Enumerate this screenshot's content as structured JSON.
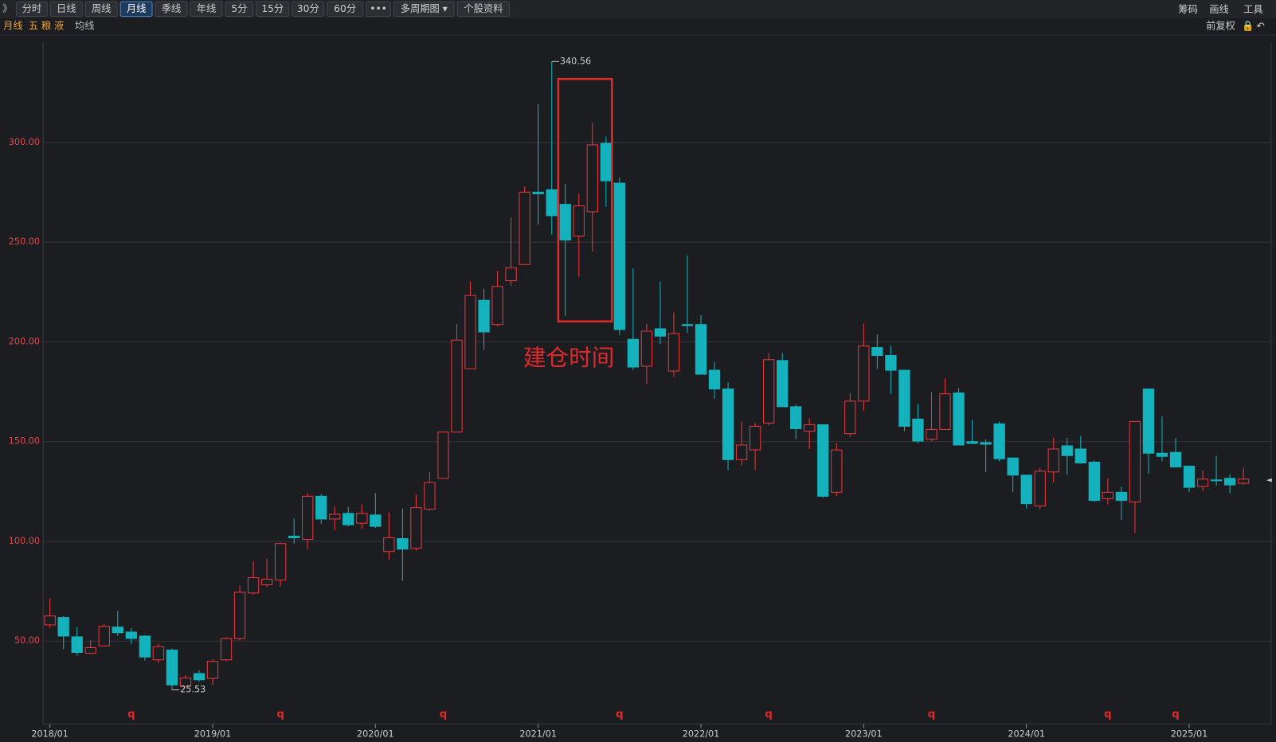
{
  "toolbar": {
    "tabs": [
      "分时",
      "日线",
      "周线",
      "月线",
      "季线",
      "年线",
      "5分",
      "15分",
      "30分",
      "60分",
      "•••",
      "多周期图 ▾",
      "个股资料"
    ],
    "active": 3,
    "right": [
      "筹码",
      "画线",
      "工具"
    ]
  },
  "subbar": {
    "period": "月线",
    "stock": "五 粮 液",
    "indicator": "均线",
    "adjust": "前复权"
  },
  "annotation": "建仓时间",
  "chart_data": {
    "type": "candlestick",
    "categories": [
      "2018/01",
      null,
      null,
      null,
      null,
      null,
      null,
      null,
      null,
      null,
      null,
      null,
      "2019/01",
      null,
      null,
      null,
      null,
      null,
      null,
      null,
      null,
      null,
      null,
      null,
      "2020/01",
      null,
      null,
      null,
      null,
      null,
      null,
      null,
      null,
      null,
      null,
      null,
      "2021/01",
      null,
      null,
      null,
      null,
      null,
      null,
      null,
      null,
      null,
      null,
      null,
      "2022/01",
      null,
      null,
      null,
      null,
      null,
      null,
      null,
      null,
      null,
      null,
      null,
      "2023/01",
      null,
      null,
      null,
      null,
      null,
      null,
      null,
      null,
      null,
      null,
      null,
      "2024/01",
      null,
      null,
      null,
      null,
      null,
      null,
      null,
      null,
      null,
      null,
      null,
      "2025/01",
      null,
      null,
      null,
      null
    ],
    "open": [
      58.1,
      61.8,
      52.1,
      43.9,
      47.6,
      57.0,
      54.5,
      52.5,
      40.6,
      45.5,
      27.3,
      33.7,
      31.3,
      40.6,
      51.3,
      74.1,
      78.2,
      80.6,
      102.6,
      101.0,
      122.6,
      111.2,
      114.0,
      109.1,
      113.2,
      94.9,
      101.4,
      96.5,
      116.1,
      131.6,
      154.8,
      186.6,
      220.9,
      208.7,
      230.7,
      238.8,
      275.1,
      276.3,
      269.0,
      253.1,
      265.3,
      299.6,
      279.6,
      201.3,
      187.8,
      206.6,
      185.4,
      208.7,
      208.7,
      185.8,
      176.4,
      141.0,
      145.9,
      159.3,
      190.7,
      167.5,
      155.2,
      158.5,
      124.6,
      154.0,
      170.3,
      197.2,
      193.2,
      185.8,
      161.3,
      151.2,
      156.1,
      174.4,
      150.0,
      149.5,
      158.9,
      141.8,
      133.2,
      117.7,
      134.8,
      147.9,
      146.3,
      139.7,
      121.4,
      124.6,
      119.7,
      176.4,
      144.2,
      144.6,
      137.7,
      127.5,
      130.8,
      131.6,
      129.1
    ],
    "high": [
      71.5,
      62.6,
      57.0,
      50.4,
      58.6,
      65.1,
      56.5,
      52.9,
      48.8,
      46.3,
      32.9,
      35.3,
      41.0,
      52.1,
      77.8,
      90.0,
      91.2,
      99.4,
      111.6,
      124.2,
      123.8,
      117.3,
      117.3,
      118.5,
      124.2,
      114.5,
      116.5,
      123.4,
      134.8,
      154.8,
      209.1,
      230.3,
      226.6,
      235.6,
      262.5,
      278.0,
      319.2,
      340.56,
      279.2,
      274.3,
      309.8,
      302.9,
      282.5,
      236.8,
      209.1,
      230.3,
      214.8,
      243.3,
      213.5,
      189.9,
      179.7,
      160.1,
      159.3,
      194.4,
      194.4,
      168.7,
      161.8,
      158.5,
      149.1,
      174.4,
      209.1,
      203.8,
      198.0,
      185.8,
      168.7,
      174.8,
      181.7,
      176.8,
      160.9,
      151.2,
      160.1,
      141.8,
      133.2,
      136.9,
      151.9,
      151.9,
      152.8,
      140.5,
      131.6,
      127.5,
      160.1,
      176.4,
      162.6,
      151.9,
      137.7,
      135.7,
      143.0,
      133.6,
      136.9
    ],
    "low": [
      56.5,
      45.9,
      42.7,
      43.5,
      47.2,
      52.5,
      48.4,
      40.2,
      39.0,
      25.53,
      27.0,
      29.6,
      28.0,
      39.8,
      50.4,
      73.3,
      77.0,
      77.4,
      98.9,
      96.1,
      108.7,
      105.5,
      107.5,
      106.3,
      106.7,
      90.8,
      80.2,
      95.3,
      115.3,
      131.6,
      154.8,
      186.6,
      196.0,
      207.8,
      228.2,
      238.8,
      258.8,
      253.9,
      213.1,
      232.7,
      245.4,
      267.8,
      203.4,
      185.8,
      178.9,
      198.9,
      182.5,
      204.6,
      183.8,
      171.5,
      135.7,
      138.1,
      135.7,
      158.1,
      167.5,
      151.2,
      146.3,
      121.8,
      122.6,
      152.4,
      165.4,
      186.6,
      174.0,
      155.2,
      149.1,
      150.3,
      156.1,
      148.3,
      149.1,
      134.8,
      140.1,
      124.6,
      116.5,
      116.1,
      129.5,
      133.2,
      138.9,
      119.8,
      118.5,
      110.8,
      104.3,
      134.0,
      140.1,
      137.3,
      124.6,
      125.0,
      127.9,
      124.2,
      128.3
    ],
    "close": [
      62.6,
      52.5,
      44.3,
      46.7,
      57.4,
      54.2,
      51.3,
      42.0,
      47.2,
      28.0,
      31.5,
      30.6,
      39.8,
      51.3,
      74.5,
      81.8,
      81.0,
      98.9,
      101.8,
      122.6,
      111.2,
      113.6,
      108.3,
      114.0,
      107.5,
      101.8,
      96.1,
      116.9,
      129.5,
      154.8,
      200.9,
      223.3,
      205.0,
      227.8,
      237.2,
      275.1,
      274.3,
      263.3,
      251.1,
      268.2,
      298.8,
      280.8,
      206.2,
      187.4,
      205.4,
      202.9,
      204.2,
      208.2,
      183.8,
      176.4,
      141.0,
      148.3,
      157.7,
      191.1,
      167.5,
      156.5,
      158.5,
      122.6,
      145.8,
      170.3,
      198.0,
      193.2,
      185.8,
      157.7,
      150.3,
      156.1,
      174.0,
      148.3,
      149.1,
      148.7,
      141.4,
      133.2,
      118.9,
      135.2,
      146.3,
      143.0,
      139.3,
      120.5,
      124.6,
      120.5,
      160.1,
      144.2,
      142.6,
      137.3,
      127.1,
      131.2,
      130.4,
      128.3,
      131.2
    ],
    "up_color": "#e8383d",
    "down_color": "#14b2bc",
    "ylim": [
      8.4,
      350.2
    ],
    "yticks": [
      {
        "value": 50,
        "label": "50.00"
      },
      {
        "value": 100,
        "label": "100.00"
      },
      {
        "value": 150,
        "label": "150.00"
      },
      {
        "value": 200,
        "label": "200.00"
      },
      {
        "value": 250,
        "label": "250.00"
      },
      {
        "value": 300,
        "label": "300.00"
      }
    ],
    "grid": true,
    "events": [
      {
        "index": 6,
        "label": "q"
      },
      {
        "index": 17,
        "label": "q"
      },
      {
        "index": 29,
        "label": "q"
      },
      {
        "index": 42,
        "label": "q"
      },
      {
        "index": 53,
        "label": "q"
      },
      {
        "index": 65,
        "label": "q"
      },
      {
        "index": 78,
        "label": "q"
      },
      {
        "index": 83,
        "label": "q"
      }
    ]
  }
}
